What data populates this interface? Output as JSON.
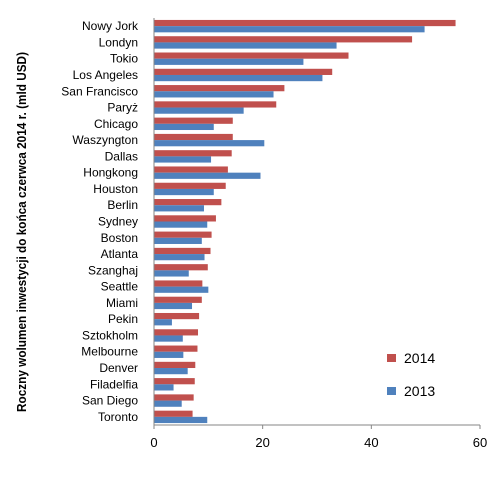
{
  "chart_data": {
    "type": "bar",
    "orientation": "horizontal",
    "ylabel": "Roczny wolumen inwestycji do końca czerwca 2014 r. (mld USD)",
    "xlabel": "",
    "xlim": [
      0,
      60
    ],
    "xticks": [
      0,
      20,
      40,
      60
    ],
    "grid": false,
    "legend_position": "right",
    "categories": [
      "Nowy Jork",
      "Londyn",
      "Tokio",
      "Los Angeles",
      "San Francisco",
      "Paryż",
      "Chicago",
      "Waszyngton",
      "Dallas",
      "Hongkong",
      "Houston",
      "Berlin",
      "Sydney",
      "Boston",
      "Atlanta",
      "Szanghaj",
      "Seattle",
      "Miami",
      "Pekin",
      "Sztokholm",
      "Melbourne",
      "Denver",
      "Filadelfia",
      "San Diego",
      "Toronto"
    ],
    "series": [
      {
        "name": "2014",
        "color": "#c0504d",
        "values": [
          55.5,
          47.5,
          35.8,
          32.8,
          24.0,
          22.5,
          14.5,
          14.5,
          14.3,
          13.6,
          13.2,
          12.4,
          11.4,
          10.6,
          10.4,
          9.9,
          8.9,
          8.8,
          8.3,
          8.1,
          8.0,
          7.6,
          7.5,
          7.3,
          7.1
        ]
      },
      {
        "name": "2013",
        "color": "#4f81bd",
        "values": [
          49.8,
          33.6,
          27.5,
          31.0,
          22.0,
          16.5,
          11.0,
          20.3,
          10.5,
          19.6,
          11.0,
          9.2,
          9.8,
          8.8,
          9.3,
          6.4,
          10.0,
          7.0,
          3.3,
          5.3,
          5.4,
          6.2,
          3.6,
          5.1,
          9.8
        ]
      }
    ]
  }
}
